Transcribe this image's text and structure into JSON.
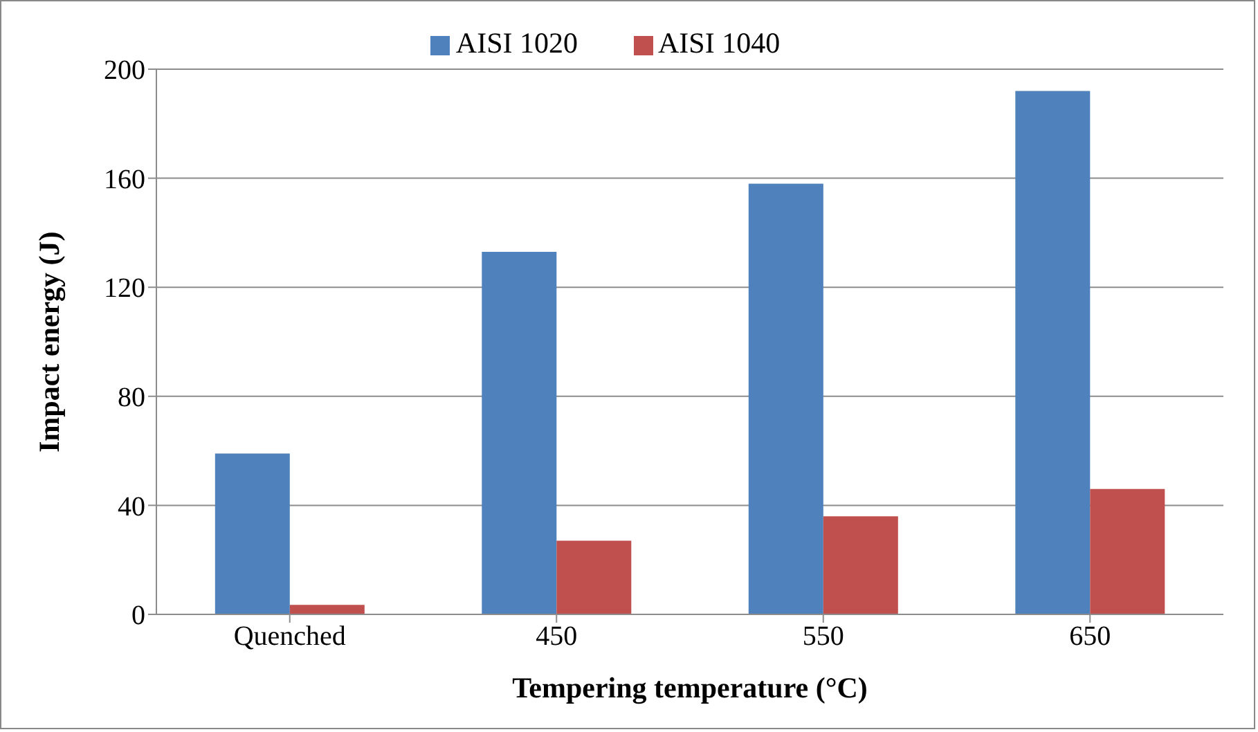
{
  "chart_data": {
    "type": "bar",
    "xlabel": "Tempering temperature (°C)",
    "ylabel": "Impact energy (J)",
    "categories": [
      "Quenched",
      "450",
      "550",
      "650"
    ],
    "series": [
      {
        "name": "AISI 1020",
        "color": "#4f81bd",
        "values": [
          59,
          133,
          158,
          192
        ]
      },
      {
        "name": "AISI 1040",
        "color": "#c0504d",
        "values": [
          3.5,
          27,
          36,
          46
        ]
      }
    ],
    "ylim": [
      0,
      200
    ],
    "yticks": [
      0,
      40,
      80,
      120,
      160,
      200
    ],
    "grid": "y",
    "legend": "top"
  }
}
